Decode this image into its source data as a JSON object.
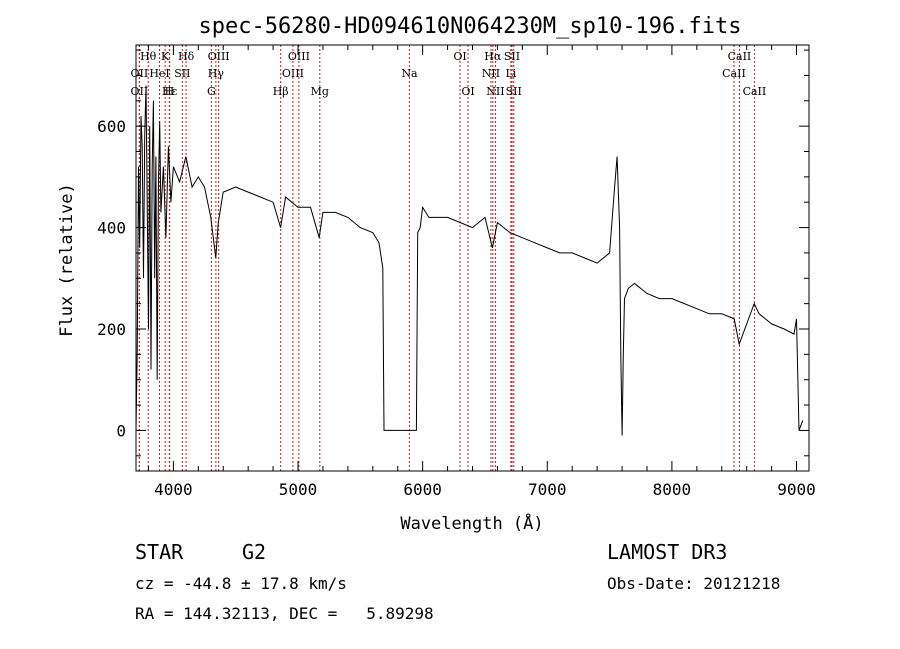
{
  "chart_data": {
    "type": "line",
    "title": "spec-56280-HD094610N064230M_sp10-196.fits",
    "xlabel": "Wavelength (Å)",
    "ylabel": "Flux (relative)",
    "xlim": [
      3700,
      9100
    ],
    "ylim": [
      -80,
      760
    ],
    "xticks": [
      4000,
      5000,
      6000,
      7000,
      8000,
      9000
    ],
    "yticks": [
      0,
      200,
      400,
      600
    ],
    "grid": false,
    "series": [
      {
        "x": [
          3700,
          3710,
          3720,
          3730,
          3740,
          3750,
          3760,
          3770,
          3780,
          3790,
          3800,
          3810,
          3820,
          3830,
          3840,
          3850,
          3860,
          3870,
          3880,
          3890,
          3900,
          3920,
          3940,
          3960,
          3980,
          4000,
          4050,
          4100,
          4150,
          4200,
          4250,
          4300,
          4340,
          4360,
          4400,
          4500,
          4600,
          4700,
          4800,
          4860,
          4900,
          5000,
          5100,
          5170,
          5200,
          5300,
          5400,
          5500,
          5600,
          5650,
          5680,
          5690,
          5700,
          5800,
          5900,
          5950,
          5960,
          5980,
          6000,
          6050,
          6100,
          6200,
          6300,
          6400,
          6500,
          6560,
          6600,
          6700,
          6800,
          6900,
          7000,
          7100,
          7200,
          7300,
          7400,
          7450,
          7500,
          7540,
          7560,
          7580,
          7590,
          7600,
          7610,
          7620,
          7650,
          7700,
          7800,
          7900,
          8000,
          8100,
          8200,
          8300,
          8400,
          8500,
          8540,
          8600,
          8660,
          8700,
          8800,
          8900,
          8980,
          9000,
          9020,
          9050
        ],
        "y": [
          0,
          150,
          520,
          360,
          620,
          560,
          300,
          580,
          680,
          450,
          200,
          600,
          120,
          520,
          650,
          300,
          540,
          100,
          480,
          610,
          430,
          520,
          380,
          560,
          450,
          520,
          490,
          540,
          480,
          500,
          480,
          420,
          340,
          410,
          470,
          480,
          470,
          460,
          450,
          400,
          460,
          440,
          440,
          380,
          430,
          430,
          420,
          400,
          390,
          370,
          320,
          0,
          0,
          0,
          0,
          0,
          390,
          400,
          440,
          420,
          420,
          420,
          410,
          400,
          420,
          360,
          410,
          390,
          380,
          370,
          360,
          350,
          350,
          340,
          330,
          340,
          350,
          480,
          540,
          400,
          150,
          -10,
          150,
          260,
          280,
          290,
          270,
          260,
          260,
          250,
          240,
          230,
          230,
          220,
          170,
          210,
          250,
          230,
          210,
          200,
          190,
          220,
          0,
          20
        ]
      }
    ],
    "spectral_lines": [
      {
        "label": "Hθ",
        "x": 3798,
        "row": 0
      },
      {
        "label": "OII",
        "x": 3727,
        "row": 1
      },
      {
        "label": "OII",
        "x": 3727,
        "row": 2
      },
      {
        "label": "K",
        "x": 3934,
        "row": 0
      },
      {
        "label": "HeI",
        "x": 3889,
        "row": 1
      },
      {
        "label": "Hε",
        "x": 3970,
        "row": 2
      },
      {
        "label": "Hδ",
        "x": 4102,
        "row": 0
      },
      {
        "label": "SII",
        "x": 4072,
        "row": 1
      },
      {
        "label": "H",
        "x": 3968,
        "row": 2
      },
      {
        "label": "OIII",
        "x": 4363,
        "row": 0
      },
      {
        "label": "Hγ",
        "x": 4341,
        "row": 1
      },
      {
        "label": "G",
        "x": 4305,
        "row": 2
      },
      {
        "label": "Hβ",
        "x": 4861,
        "row": 2
      },
      {
        "label": "OIII",
        "x": 5007,
        "row": 0
      },
      {
        "label": "OIII",
        "x": 4959,
        "row": 1
      },
      {
        "label": "Mg",
        "x": 5175,
        "row": 2
      },
      {
        "label": "Na",
        "x": 5894,
        "row": 1
      },
      {
        "label": "OI",
        "x": 6300,
        "row": 0
      },
      {
        "label": "OI",
        "x": 6364,
        "row": 2
      },
      {
        "label": "Hα",
        "x": 6563,
        "row": 0
      },
      {
        "label": "NII",
        "x": 6548,
        "row": 1
      },
      {
        "label": "NII",
        "x": 6584,
        "row": 2
      },
      {
        "label": "SII",
        "x": 6717,
        "row": 0
      },
      {
        "label": "Li",
        "x": 6708,
        "row": 1
      },
      {
        "label": "SII",
        "x": 6731,
        "row": 2
      },
      {
        "label": "CaII",
        "x": 8542,
        "row": 0
      },
      {
        "label": "CaII",
        "x": 8498,
        "row": 1
      },
      {
        "label": "CaII",
        "x": 8662,
        "row": 2
      }
    ]
  },
  "info": {
    "class": "STAR",
    "subclass": "G2",
    "survey": "LAMOST DR3",
    "cz": "cz = -44.8 ± 17.8 km/s",
    "obs_date": "Obs-Date: 20121218",
    "coords": "RA = 144.32113, DEC =   5.89298"
  }
}
